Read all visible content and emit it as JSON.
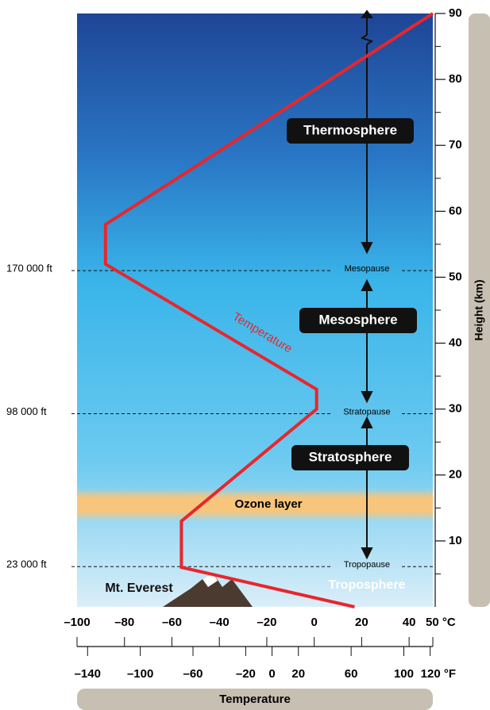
{
  "chart_data": {
    "type": "line",
    "x_label": "Temperature",
    "y_label": "Height (km)",
    "x": [
      50,
      -88,
      -88,
      1,
      1,
      -56,
      -56,
      17
    ],
    "series": [
      {
        "name": "Temperature",
        "color": "#e8262c",
        "values": [
          90,
          58,
          52,
          33,
          30,
          13,
          6,
          0
        ]
      }
    ],
    "xlim": [
      -100,
      50
    ],
    "xticks": [
      {
        "value": -100,
        "label": "–100"
      },
      {
        "value": -80,
        "label": "–80"
      },
      {
        "value": -60,
        "label": "–60"
      },
      {
        "value": -40,
        "label": "–40"
      },
      {
        "value": -20,
        "label": "–20"
      },
      0,
      20,
      40,
      {
        "value": 50,
        "label": "50 °C"
      }
    ],
    "x2lim": [
      -148,
      122
    ],
    "x2ticks": [
      {
        "value": -140,
        "label": "–140"
      },
      {
        "value": -100,
        "label": "–100"
      },
      {
        "value": -60,
        "label": "–60"
      },
      {
        "value": -20,
        "label": "–20"
      },
      0,
      20,
      60,
      100,
      {
        "value": 120,
        "label": "120 °F"
      }
    ],
    "ylim": [
      0,
      90
    ],
    "yticks": [
      10,
      20,
      30,
      40,
      50,
      60,
      70,
      80,
      90
    ],
    "minor_yticks": [
      5,
      15,
      25,
      35,
      45,
      55,
      65,
      75,
      85
    ],
    "reference_lines": [
      {
        "label": "170 000 ft",
        "name": "Mesopause",
        "value": 51
      },
      {
        "label": "98 000 ft",
        "name": "Stratopause",
        "value": 29.3
      },
      {
        "label": "23 000 ft",
        "name": "Tropopause",
        "value": 6.1
      }
    ],
    "layers": [
      "Thermosphere",
      "Mesosphere",
      "Stratosphere"
    ],
    "ozone_layer": {
      "label": "Ozone layer",
      "range": [
        13.7,
        17.3
      ]
    },
    "annotations": [
      "Mt. Everest",
      "Troposphere"
    ]
  }
}
